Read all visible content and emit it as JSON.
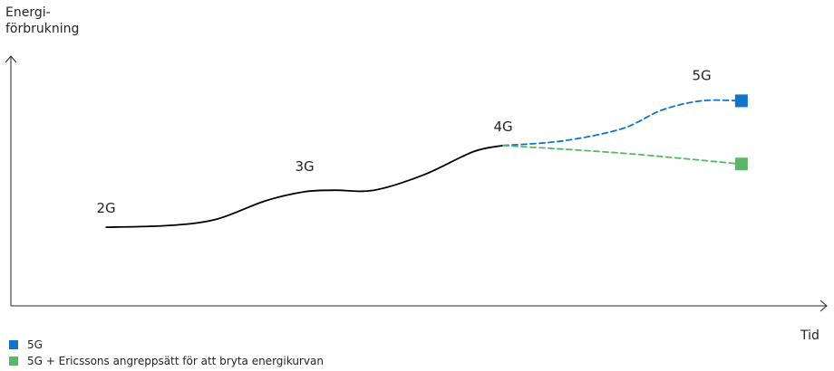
{
  "chart_data": {
    "type": "line",
    "title": "",
    "ylabel_lines": [
      "Energi-",
      "förbrukning"
    ],
    "xlabel": "Tid",
    "generations": [
      {
        "label": "2G",
        "x": 0.0,
        "y": 0.06
      },
      {
        "label": "3G",
        "x": 1.0,
        "y": 0.33
      },
      {
        "label": "4G",
        "x": 2.0,
        "y": 0.59
      },
      {
        "label": "5G",
        "x": 3.0,
        "y": 0.92
      }
    ],
    "series": [
      {
        "name": "",
        "style": "solid",
        "color": "#000000",
        "x": [
          0.0,
          0.3,
          0.55,
          0.8,
          1.0,
          1.15,
          1.35,
          1.6,
          1.85,
          2.0
        ],
        "y": [
          0.06,
          0.07,
          0.11,
          0.23,
          0.29,
          0.3,
          0.3,
          0.4,
          0.55,
          0.59
        ]
      },
      {
        "name": "5G",
        "style": "dashed",
        "color": "#1174C6",
        "x": [
          2.0,
          2.3,
          2.6,
          2.8,
          3.0,
          3.2
        ],
        "y": [
          0.59,
          0.62,
          0.7,
          0.82,
          0.88,
          0.88
        ]
      },
      {
        "name": "5G + Ericssons angreppsätt för att bryta energikurvan",
        "style": "dashed",
        "color": "#5BB56A",
        "x": [
          2.0,
          2.6,
          3.2
        ],
        "y": [
          0.59,
          0.54,
          0.47
        ]
      }
    ],
    "xlim": [
      -0.48,
      3.63
    ],
    "ylim": [
      -0.45,
      1.17
    ],
    "axis_arrows": true,
    "grid": false,
    "legend": {
      "placement": "bottom-left",
      "entries": [
        {
          "label": "5G",
          "color": "#1174C6"
        },
        {
          "label": "5G + Ericssons angreppsätt för att bryta energikurvan",
          "color": "#5BB56A"
        }
      ]
    }
  }
}
